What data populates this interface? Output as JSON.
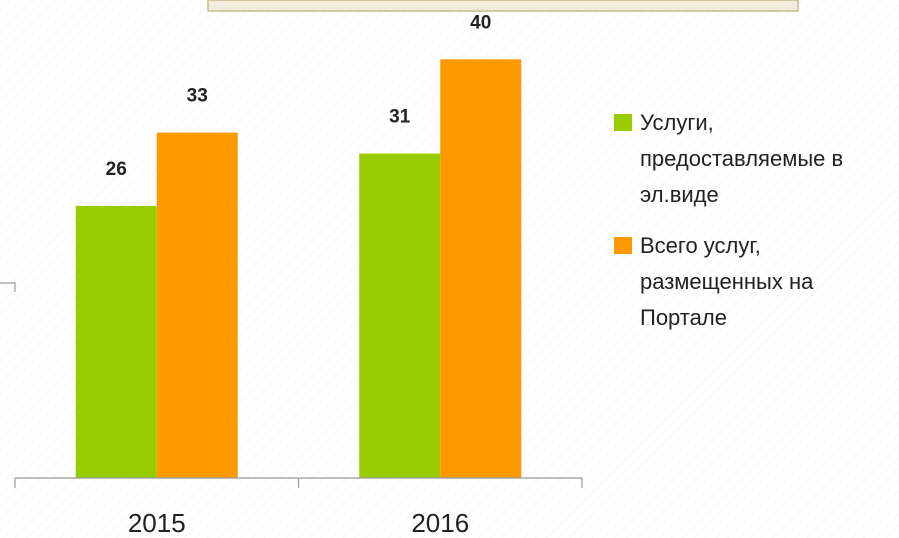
{
  "chart_data": {
    "type": "bar",
    "categories": [
      "2015",
      "2016"
    ],
    "series": [
      {
        "name": "Услуги, предоставляемые в эл.виде",
        "color": "#99cc00",
        "values": [
          26,
          31
        ]
      },
      {
        "name": "Всего услуг, размещенных на Портале",
        "color": "#ff9900",
        "values": [
          33,
          40
        ]
      }
    ],
    "ylim": [
      0,
      45
    ]
  }
}
